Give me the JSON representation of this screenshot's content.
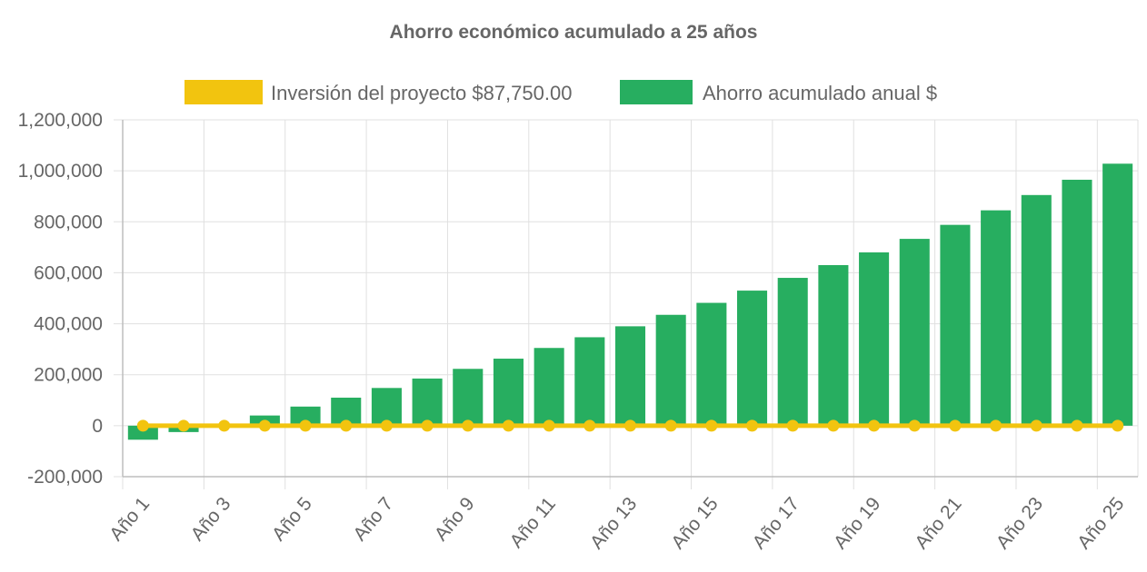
{
  "chart_data": {
    "type": "bar",
    "title": "Ahorro económico acumulado a 25 años",
    "legend_position": "top",
    "grid": true,
    "ylim": [
      -200000,
      1200000
    ],
    "y_ticks": [
      -200000,
      0,
      200000,
      400000,
      600000,
      800000,
      1000000,
      1200000
    ],
    "y_tick_labels": [
      "-200,000",
      "0",
      "200,000",
      "400,000",
      "600,000",
      "800,000",
      "1,000,000",
      "1,200,000"
    ],
    "categories": [
      "Año 1",
      "Año 2",
      "Año 3",
      "Año 4",
      "Año 5",
      "Año 6",
      "Año 7",
      "Año 8",
      "Año 9",
      "Año 10",
      "Año 11",
      "Año 12",
      "Año 13",
      "Año 14",
      "Año 15",
      "Año 16",
      "Año 17",
      "Año 18",
      "Año 19",
      "Año 20",
      "Año 21",
      "Año 22",
      "Año 23",
      "Año 24",
      "Año 25"
    ],
    "x_tick_labels": [
      "Año 1",
      "Año 3",
      "Año 5",
      "Año 7",
      "Año 9",
      "Año 11",
      "Año 13",
      "Año 15",
      "Año 17",
      "Año 19",
      "Año 21",
      "Año 23",
      "Año 25"
    ],
    "series": [
      {
        "name": "Inversión del proyecto $87,750.00",
        "type": "line",
        "color": "#f2c40f",
        "values": [
          0,
          0,
          0,
          0,
          0,
          0,
          0,
          0,
          0,
          0,
          0,
          0,
          0,
          0,
          0,
          0,
          0,
          0,
          0,
          0,
          0,
          0,
          0,
          0,
          0
        ]
      },
      {
        "name": "Ahorro acumulado anual $",
        "type": "bar",
        "color": "#27ae60",
        "values": [
          -55000,
          -25000,
          5000,
          40000,
          75000,
          110000,
          148000,
          185000,
          223000,
          263000,
          305000,
          347000,
          390000,
          435000,
          482000,
          530000,
          580000,
          630000,
          680000,
          733000,
          788000,
          845000,
          905000,
          965000,
          1028000
        ]
      }
    ]
  }
}
